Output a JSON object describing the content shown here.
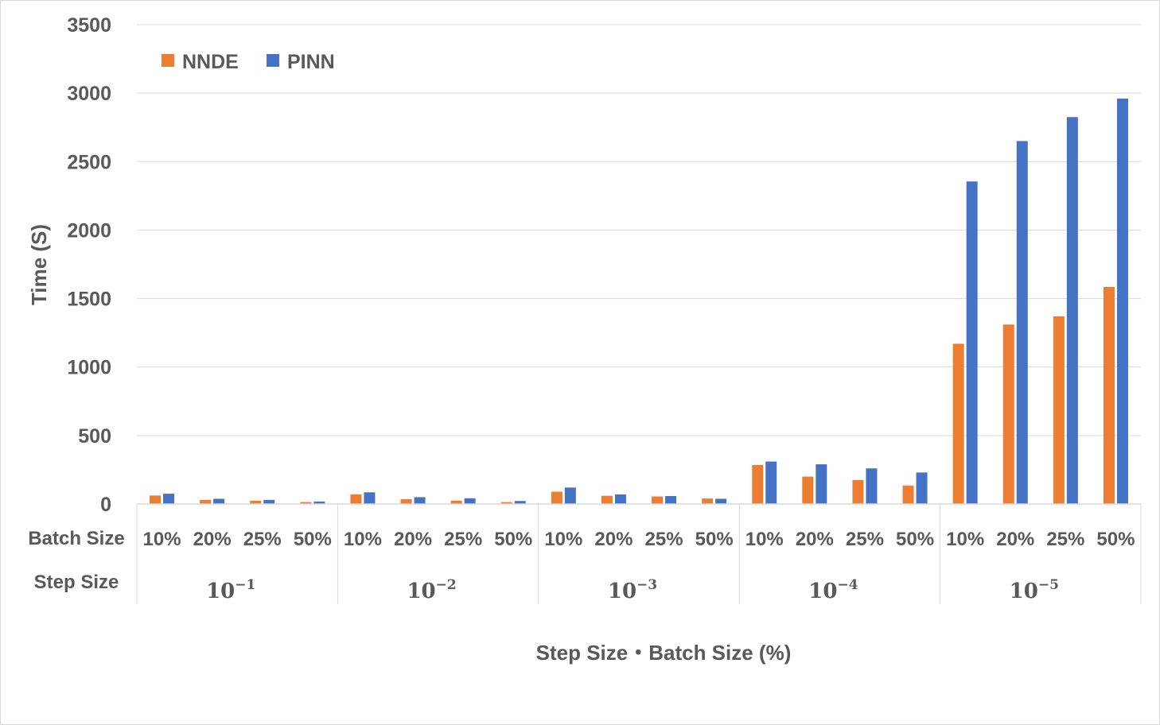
{
  "chart_data": {
    "type": "bar",
    "title": "",
    "xlabel": "Step Size・Batch Size (%)",
    "ylabel": "Time (S)",
    "ylim": [
      0,
      3500
    ],
    "yticks": [
      0,
      500,
      1000,
      1500,
      2000,
      2500,
      3000,
      3500
    ],
    "grid": true,
    "legend_position": "top-left",
    "row_labels": {
      "batch": "Batch Size",
      "step": "Step Size"
    },
    "groups": [
      {
        "base": "10",
        "exp": "−1",
        "categories": [
          "10%",
          "20%",
          "25%",
          "50%"
        ]
      },
      {
        "base": "10",
        "exp": "−2",
        "categories": [
          "10%",
          "20%",
          "25%",
          "50%"
        ]
      },
      {
        "base": "10",
        "exp": "−3",
        "categories": [
          "10%",
          "20%",
          "25%",
          "50%"
        ]
      },
      {
        "base": "10",
        "exp": "−4",
        "categories": [
          "10%",
          "20%",
          "25%",
          "50%"
        ]
      },
      {
        "base": "10",
        "exp": "−5",
        "categories": [
          "10%",
          "20%",
          "25%",
          "50%"
        ]
      }
    ],
    "series": [
      {
        "name": "NNDE",
        "color": "#ed7d31",
        "values": [
          62,
          30,
          24,
          14,
          70,
          35,
          25,
          14,
          90,
          60,
          55,
          40,
          285,
          200,
          175,
          135,
          1170,
          1310,
          1370,
          1585
        ]
      },
      {
        "name": "PINN",
        "color": "#4472c4",
        "values": [
          75,
          38,
          30,
          18,
          85,
          50,
          42,
          22,
          120,
          70,
          58,
          38,
          310,
          290,
          260,
          230,
          2355,
          2650,
          2825,
          2960
        ]
      }
    ]
  }
}
